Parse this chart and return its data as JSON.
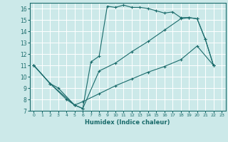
{
  "xlabel": "Humidex (Indice chaleur)",
  "xlim": [
    -0.5,
    23.5
  ],
  "ylim": [
    7,
    16.5
  ],
  "yticks": [
    7,
    8,
    9,
    10,
    11,
    12,
    13,
    14,
    15,
    16
  ],
  "xticks": [
    0,
    1,
    2,
    3,
    4,
    5,
    6,
    7,
    8,
    9,
    10,
    11,
    12,
    13,
    14,
    15,
    16,
    17,
    18,
    19,
    20,
    21,
    22,
    23
  ],
  "bg_color": "#cce9e9",
  "line_color": "#1a6b6b",
  "line1_x": [
    0,
    2,
    3,
    5,
    6,
    7,
    8,
    9,
    10,
    11,
    12,
    13,
    14,
    15,
    16,
    17,
    18,
    19,
    20,
    21,
    22
  ],
  "line1_y": [
    11,
    9.4,
    9,
    7.5,
    7.2,
    11.3,
    11.8,
    16.2,
    16.1,
    16.3,
    16.1,
    16.1,
    16.0,
    15.8,
    15.6,
    15.7,
    15.2,
    15.2,
    15.1,
    13.3,
    11.0
  ],
  "line2_x": [
    0,
    2,
    5,
    6,
    8,
    10,
    12,
    14,
    16,
    18,
    19,
    20,
    21,
    22
  ],
  "line2_y": [
    11,
    9.4,
    7.5,
    7.2,
    10.5,
    11.2,
    12.2,
    13.1,
    14.1,
    15.1,
    15.2,
    15.1,
    13.3,
    11.0
  ],
  "line3_x": [
    0,
    2,
    4,
    5,
    6,
    8,
    10,
    12,
    14,
    16,
    18,
    20,
    22
  ],
  "line3_y": [
    11,
    9.4,
    8.0,
    7.5,
    7.8,
    8.5,
    9.2,
    9.8,
    10.4,
    10.9,
    11.5,
    12.7,
    11.0
  ]
}
